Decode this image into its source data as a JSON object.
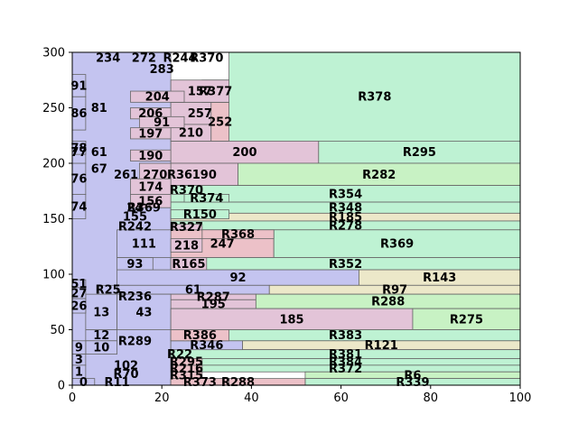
{
  "chart_data": {
    "type": "treemap",
    "title": "",
    "xlabel": "",
    "ylabel": "",
    "xlim": [
      0,
      100
    ],
    "ylim": [
      0,
      300
    ],
    "grid": false,
    "x_ticks": [
      0,
      20,
      40,
      60,
      80,
      100
    ],
    "y_ticks": [
      0,
      50,
      100,
      150,
      200,
      250,
      300
    ],
    "x_tick_labels": [
      "0",
      "20",
      "40",
      "60",
      "80",
      "100"
    ],
    "y_tick_labels": [
      "0",
      "50",
      "100",
      "150",
      "200",
      "250",
      "300"
    ],
    "colors": {
      "blue": "#c4c4f0",
      "green": "#bef2d3",
      "pink": "#e3c4d8",
      "lightgreen": "#c8f2c4",
      "beige": "#ece8c9",
      "rose": "#ecc1c8",
      "border": "#666666"
    },
    "rects": [
      {
        "label": "R378",
        "x0": 35,
        "x1": 100,
        "y0": 220,
        "y1": 300,
        "color": "green"
      },
      {
        "label": "200",
        "x0": 22,
        "x1": 55,
        "y0": 200,
        "y1": 220,
        "color": "pink"
      },
      {
        "label": "R295",
        "x0": 55,
        "x1": 100,
        "y0": 200,
        "y1": 220,
        "color": "green"
      },
      {
        "label": "190",
        "x0": 22,
        "x1": 37,
        "y0": 180,
        "y1": 200,
        "color": "pink"
      },
      {
        "label": "R282",
        "x0": 37,
        "x1": 100,
        "y0": 180,
        "y1": 200,
        "color": "lightgreen"
      },
      {
        "label": "R354",
        "x0": 22,
        "x1": 100,
        "y0": 165,
        "y1": 180,
        "color": "green"
      },
      {
        "label": "R348",
        "x0": 22,
        "x1": 100,
        "y0": 155,
        "y1": 165,
        "color": "green"
      },
      {
        "label": "R185",
        "x0": 22,
        "x1": 100,
        "y0": 148,
        "y1": 155,
        "color": "beige"
      },
      {
        "label": "R278",
        "x0": 22,
        "x1": 100,
        "y0": 140,
        "y1": 148,
        "color": "green"
      },
      {
        "label": "247",
        "x0": 22,
        "x1": 45,
        "y0": 115,
        "y1": 140,
        "color": "rose"
      },
      {
        "label": "R369",
        "x0": 45,
        "x1": 100,
        "y0": 115,
        "y1": 140,
        "color": "green"
      },
      {
        "label": "R352",
        "x0": 22,
        "x1": 100,
        "y0": 104,
        "y1": 115,
        "color": "green"
      },
      {
        "label": "92",
        "x0": 10,
        "x1": 64,
        "y0": 90,
        "y1": 104,
        "color": "blue"
      },
      {
        "label": "R143",
        "x0": 64,
        "x1": 100,
        "y0": 90,
        "y1": 104,
        "color": "beige"
      },
      {
        "label": "61",
        "x0": 10,
        "x1": 44,
        "y0": 82,
        "y1": 90,
        "color": "blue"
      },
      {
        "label": "R97",
        "x0": 44,
        "x1": 100,
        "y0": 82,
        "y1": 90,
        "color": "beige"
      },
      {
        "label": "R287",
        "x0": 22,
        "x1": 41,
        "y0": 77,
        "y1": 82,
        "color": "pink"
      },
      {
        "label": "195",
        "x0": 22,
        "x1": 41,
        "y0": 69,
        "y1": 77,
        "color": "pink"
      },
      {
        "label": "R288",
        "x0": 41,
        "x1": 100,
        "y0": 69,
        "y1": 82,
        "color": "lightgreen"
      },
      {
        "label": "13",
        "x0": 3,
        "x1": 10,
        "y0": 50,
        "y1": 82,
        "color": "blue"
      },
      {
        "label": "43",
        "x0": 10,
        "x1": 22,
        "y0": 50,
        "y1": 82,
        "color": "blue"
      },
      {
        "label": "185",
        "x0": 22,
        "x1": 76,
        "y0": 50,
        "y1": 69,
        "color": "pink"
      },
      {
        "label": "R275",
        "x0": 76,
        "x1": 100,
        "y0": 50,
        "y1": 69,
        "color": "lightgreen"
      },
      {
        "label": "R383",
        "x0": 22,
        "x1": 100,
        "y0": 40,
        "y1": 50,
        "color": "green"
      },
      {
        "label": "R121",
        "x0": 38,
        "x1": 100,
        "y0": 32,
        "y1": 40,
        "color": "beige"
      },
      {
        "label": "R381",
        "x0": 22,
        "x1": 100,
        "y0": 24,
        "y1": 32,
        "color": "green"
      },
      {
        "label": "R384",
        "x0": 22,
        "x1": 100,
        "y0": 18,
        "y1": 24,
        "color": "green"
      },
      {
        "label": "R372",
        "x0": 22,
        "x1": 100,
        "y0": 12,
        "y1": 18,
        "color": "green"
      },
      {
        "label": "R6",
        "x0": 52,
        "x1": 100,
        "y0": 6,
        "y1": 12,
        "color": "lightgreen"
      },
      {
        "label": "R339",
        "x0": 52,
        "x1": 100,
        "y0": 0,
        "y1": 6,
        "color": "green"
      },
      {
        "label": "R288",
        "x0": 22,
        "x1": 52,
        "y0": 0,
        "y1": 6,
        "color": "rose"
      },
      {
        "label": "257",
        "x0": 22,
        "x1": 35,
        "y0": 235,
        "y1": 255,
        "color": "pink"
      },
      {
        "label": "210",
        "x0": 22,
        "x1": 31,
        "y0": 220,
        "y1": 235,
        "color": "pink"
      },
      {
        "label": "252",
        "x0": 31,
        "x1": 35,
        "y0": 220,
        "y1": 255,
        "color": "rose"
      },
      {
        "label": "R377",
        "x0": 29,
        "x1": 35,
        "y0": 255,
        "y1": 275,
        "color": "green"
      },
      {
        "label": "157",
        "x0": 22,
        "x1": 35,
        "y0": 255,
        "y1": 275,
        "color": "pink"
      },
      {
        "label": "270",
        "x0": 15,
        "x1": 22,
        "y0": 180,
        "y1": 200,
        "color": "pink"
      },
      {
        "label": "174",
        "x0": 13,
        "x1": 22,
        "y0": 172,
        "y1": 186,
        "color": "pink"
      },
      {
        "label": "156",
        "x0": 13,
        "x1": 22,
        "y0": 160,
        "y1": 172,
        "color": "pink"
      },
      {
        "label": "111",
        "x0": 10,
        "x1": 22,
        "y0": 115,
        "y1": 140,
        "color": "blue"
      },
      {
        "label": "218",
        "x0": 22,
        "x1": 29,
        "y0": 120,
        "y1": 132,
        "color": "pink"
      },
      {
        "label": "93",
        "x0": 10,
        "x1": 18,
        "y0": 104,
        "y1": 115,
        "color": "blue"
      },
      {
        "label": "76",
        "x0": 0,
        "x1": 3,
        "y0": 172,
        "y1": 200,
        "color": "blue"
      },
      {
        "label": "74",
        "x0": 0,
        "x1": 3,
        "y0": 150,
        "y1": 172,
        "color": "blue"
      },
      {
        "label": "86",
        "x0": 0,
        "x1": 3,
        "y0": 230,
        "y1": 260,
        "color": "blue"
      },
      {
        "label": "91",
        "x0": 0,
        "x1": 3,
        "y0": 260,
        "y1": 280,
        "color": "blue"
      },
      {
        "label": "77",
        "x0": 0,
        "x1": 3,
        "y0": 200,
        "y1": 220,
        "color": "blue"
      },
      {
        "label": "78",
        "x0": 0,
        "x1": 3,
        "y0": 208,
        "y1": 220,
        "color": "blue"
      },
      {
        "label": "12",
        "x0": 3,
        "x1": 10,
        "y0": 40,
        "y1": 50,
        "color": "blue"
      },
      {
        "label": "10",
        "x0": 3,
        "x1": 10,
        "y0": 28,
        "y1": 40,
        "color": "blue"
      },
      {
        "label": "9",
        "x0": 0,
        "x1": 3,
        "y0": 28,
        "y1": 40,
        "color": "blue"
      },
      {
        "label": "3",
        "x0": 0,
        "x1": 3,
        "y0": 18,
        "y1": 28,
        "color": "blue"
      },
      {
        "label": "1",
        "x0": 0,
        "x1": 3,
        "y0": 6,
        "y1": 18,
        "color": "blue"
      },
      {
        "label": "0",
        "x0": 0,
        "x1": 5,
        "y0": 0,
        "y1": 6,
        "color": "blue"
      },
      {
        "label": "27",
        "x0": 0,
        "x1": 3,
        "y0": 78,
        "y1": 88,
        "color": "blue"
      },
      {
        "label": "26",
        "x0": 0,
        "x1": 3,
        "y0": 65,
        "y1": 78,
        "color": "blue"
      },
      {
        "label": "51",
        "x0": 0,
        "x1": 3,
        "y0": 88,
        "y1": 95,
        "color": "blue"
      },
      {
        "label": "R25",
        "x0": 6,
        "x1": 10,
        "y0": 82,
        "y1": 90,
        "color": "blue"
      },
      {
        "label": "R346",
        "x0": 22,
        "x1": 38,
        "y0": 32,
        "y1": 40,
        "color": "blue"
      },
      {
        "label": "R165",
        "x0": 22,
        "x1": 30,
        "y0": 104,
        "y1": 115,
        "color": "pink"
      },
      {
        "label": "R368",
        "x0": 29,
        "x1": 45,
        "y0": 132,
        "y1": 140,
        "color": "rose"
      },
      {
        "label": "R327",
        "x0": 22,
        "x1": 29,
        "y0": 140,
        "y1": 145,
        "color": "pink"
      },
      {
        "label": "R150",
        "x0": 22,
        "x1": 35,
        "y0": 150,
        "y1": 158,
        "color": "green"
      },
      {
        "label": "R370",
        "x0": 22,
        "x1": 29,
        "y0": 172,
        "y1": 180,
        "color": "green"
      },
      {
        "label": "R374",
        "x0": 25,
        "x1": 35,
        "y0": 165,
        "y1": 172,
        "color": "green"
      },
      {
        "label": "206",
        "x0": 13,
        "x1": 22,
        "y0": 240,
        "y1": 250,
        "color": "pink"
      },
      {
        "label": "197",
        "x0": 13,
        "x1": 22,
        "y0": 222,
        "y1": 232,
        "color": "pink"
      },
      {
        "label": "190",
        "x0": 13,
        "x1": 22,
        "y0": 202,
        "y1": 212,
        "color": "pink"
      },
      {
        "label": "204",
        "x0": 13,
        "x1": 25,
        "y0": 255,
        "y1": 265,
        "color": "pink"
      },
      {
        "label": "91",
        "x0": 15,
        "x1": 25,
        "y0": 232,
        "y1": 242,
        "color": "pink"
      },
      {
        "label": "R315",
        "x0": 22,
        "x1": 29,
        "y0": 6,
        "y1": 12,
        "color": "rose"
      },
      {
        "label": "R216",
        "x0": 22,
        "x1": 29,
        "y0": 12,
        "y1": 18,
        "color": "rose"
      },
      {
        "label": "R295",
        "x0": 22,
        "x1": 29,
        "y0": 18,
        "y1": 24,
        "color": "rose"
      },
      {
        "label": "R386",
        "x0": 22,
        "x1": 35,
        "y0": 40,
        "y1": 50,
        "color": "rose"
      },
      {
        "label": "R373",
        "x0": 22,
        "x1": 35,
        "y0": 0,
        "y1": 6,
        "color": "rose"
      }
    ],
    "rect_labels_small": [
      {
        "label": "234",
        "x": 8,
        "y": 295
      },
      {
        "label": "272",
        "x": 16,
        "y": 295
      },
      {
        "label": "R244",
        "x": 24,
        "y": 295
      },
      {
        "label": "R370",
        "x": 30,
        "y": 295
      },
      {
        "label": "283",
        "x": 20,
        "y": 285
      },
      {
        "label": "261",
        "x": 12,
        "y": 190
      },
      {
        "label": "R36",
        "x": 24,
        "y": 190
      },
      {
        "label": "R369",
        "x": 16,
        "y": 160
      },
      {
        "label": "24",
        "x": 14,
        "y": 160
      },
      {
        "label": "155",
        "x": 14,
        "y": 152
      },
      {
        "label": "R242",
        "x": 14,
        "y": 143
      },
      {
        "label": "R236",
        "x": 14,
        "y": 80
      },
      {
        "label": "R289",
        "x": 14,
        "y": 40
      },
      {
        "label": "R22",
        "x": 24,
        "y": 28
      },
      {
        "label": "102",
        "x": 12,
        "y": 18
      },
      {
        "label": "R70",
        "x": 12,
        "y": 10
      },
      {
        "label": "R11",
        "x": 10,
        "y": 3
      },
      {
        "label": "81",
        "x": 6,
        "y": 250
      },
      {
        "label": "61",
        "x": 6,
        "y": 210
      },
      {
        "label": "67",
        "x": 6,
        "y": 195
      }
    ]
  }
}
